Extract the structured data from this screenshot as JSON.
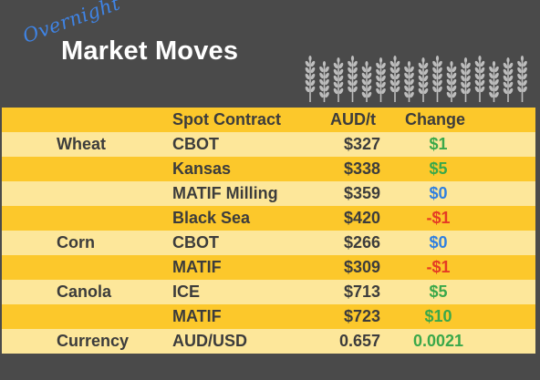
{
  "header": {
    "overnight": "Overnight",
    "title": "Market Moves",
    "decoration_icon": "wheat-stalks-icon",
    "background_color": "#4a4a4a"
  },
  "table": {
    "columns": {
      "contract": "Spot Contract",
      "price": "AUD/t",
      "change": "Change"
    },
    "rows": [
      {
        "commodity": "Wheat",
        "contract": "CBOT",
        "price": "$327",
        "change": "$1",
        "trend": "pos"
      },
      {
        "commodity": "",
        "contract": "Kansas",
        "price": "$338",
        "change": "$5",
        "trend": "pos"
      },
      {
        "commodity": "",
        "contract": "MATIF Milling",
        "price": "$359",
        "change": "$0",
        "trend": "zero"
      },
      {
        "commodity": "",
        "contract": "Black Sea",
        "price": "$420",
        "change": "-$1",
        "trend": "neg"
      },
      {
        "commodity": "Corn",
        "contract": "CBOT",
        "price": "$266",
        "change": "$0",
        "trend": "zero"
      },
      {
        "commodity": "",
        "contract": "MATIF",
        "price": "$309",
        "change": "-$1",
        "trend": "neg"
      },
      {
        "commodity": "Canola",
        "contract": "ICE",
        "price": "$713",
        "change": "$5",
        "trend": "pos"
      },
      {
        "commodity": "",
        "contract": "MATIF",
        "price": "$723",
        "change": "$10",
        "trend": "pos"
      },
      {
        "commodity": "Currency",
        "contract": "AUD/USD",
        "price": "0.657",
        "change": "0.0021",
        "trend": "pos"
      }
    ],
    "colors": {
      "row_dark": "#fcc82b",
      "row_light": "#fde79a",
      "positive": "#3aa84a",
      "zero": "#2f7fe0",
      "negative": "#e53b24"
    }
  }
}
